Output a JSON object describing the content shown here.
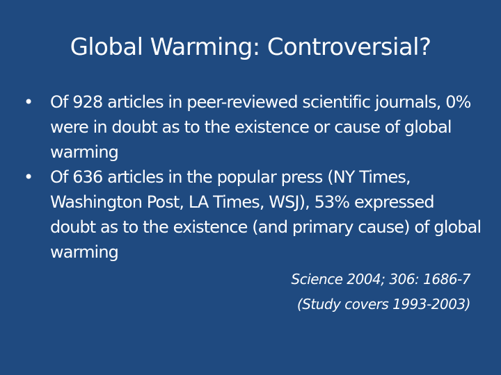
{
  "slide": {
    "title": "Global Warming: Controversial?",
    "bullets": [
      "Of 928 articles in peer-reviewed scientific journals, 0% were in doubt as to the existence or cause of global warming",
      "Of 636 articles in the popular press (NY Times, Washington Post, LA Times, WSJ), 53% expressed doubt as to the existence (and primary cause) of global warming"
    ],
    "bullet_marker": "•",
    "citation": {
      "line1": "Science 2004; 306: 1686-7",
      "line2": "(Study covers 1993-2003)"
    }
  },
  "colors": {
    "background": "#1f4a80",
    "text": "#ffffff"
  }
}
